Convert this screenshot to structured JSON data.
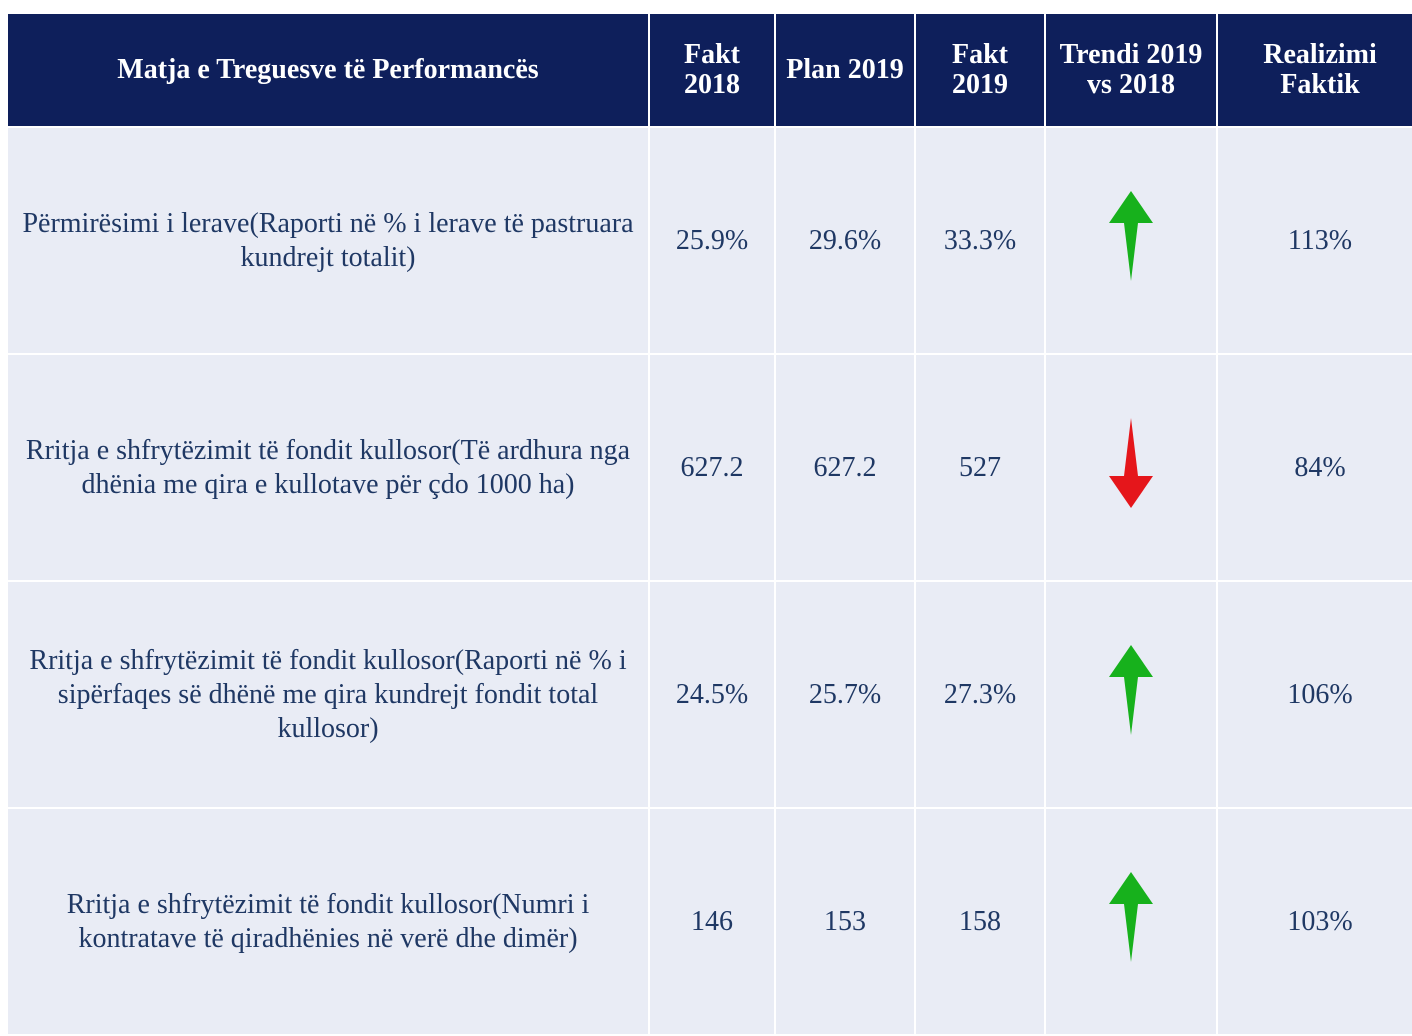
{
  "table": {
    "header": [
      "Matja e Treguesve të Performancës",
      "Fakt 2018",
      "Plan 2019",
      "Fakt 2019",
      "Trendi 2019 vs 2018",
      "Realizimi Faktik"
    ],
    "rows": [
      {
        "cells": [
          "Përmirësimi i lerave(Raporti në % i lerave të pastruara kundrejt totalit)",
          "25.9%",
          "29.6%",
          "33.3%",
          "113%"
        ],
        "trend": "up"
      },
      {
        "cells": [
          "Rritja e shfrytëzimit të fondit kullosor(Të ardhura nga dhënia me qira e kullotave për çdo 1000 ha)",
          "627.2",
          "627.2",
          "527",
          "84%"
        ],
        "trend": "down"
      },
      {
        "cells": [
          "Rritja e shfrytëzimit të fondit kullosor(Raporti në % i sipërfaqes së dhënë me qira kundrejt fondit total kullosor)",
          "24.5%",
          "25.7%",
          "27.3%",
          "106%"
        ],
        "trend": "up"
      },
      {
        "cells": [
          "Rritja e shfrytëzimit të fondit kullosor(Numri i kontratave të qiradhënies në verë dhe dimër)",
          "146",
          "153",
          "158",
          "103%"
        ],
        "trend": "up"
      }
    ],
    "trend_colors": {
      "up": "#17b11c",
      "down": "#e5161b"
    }
  }
}
